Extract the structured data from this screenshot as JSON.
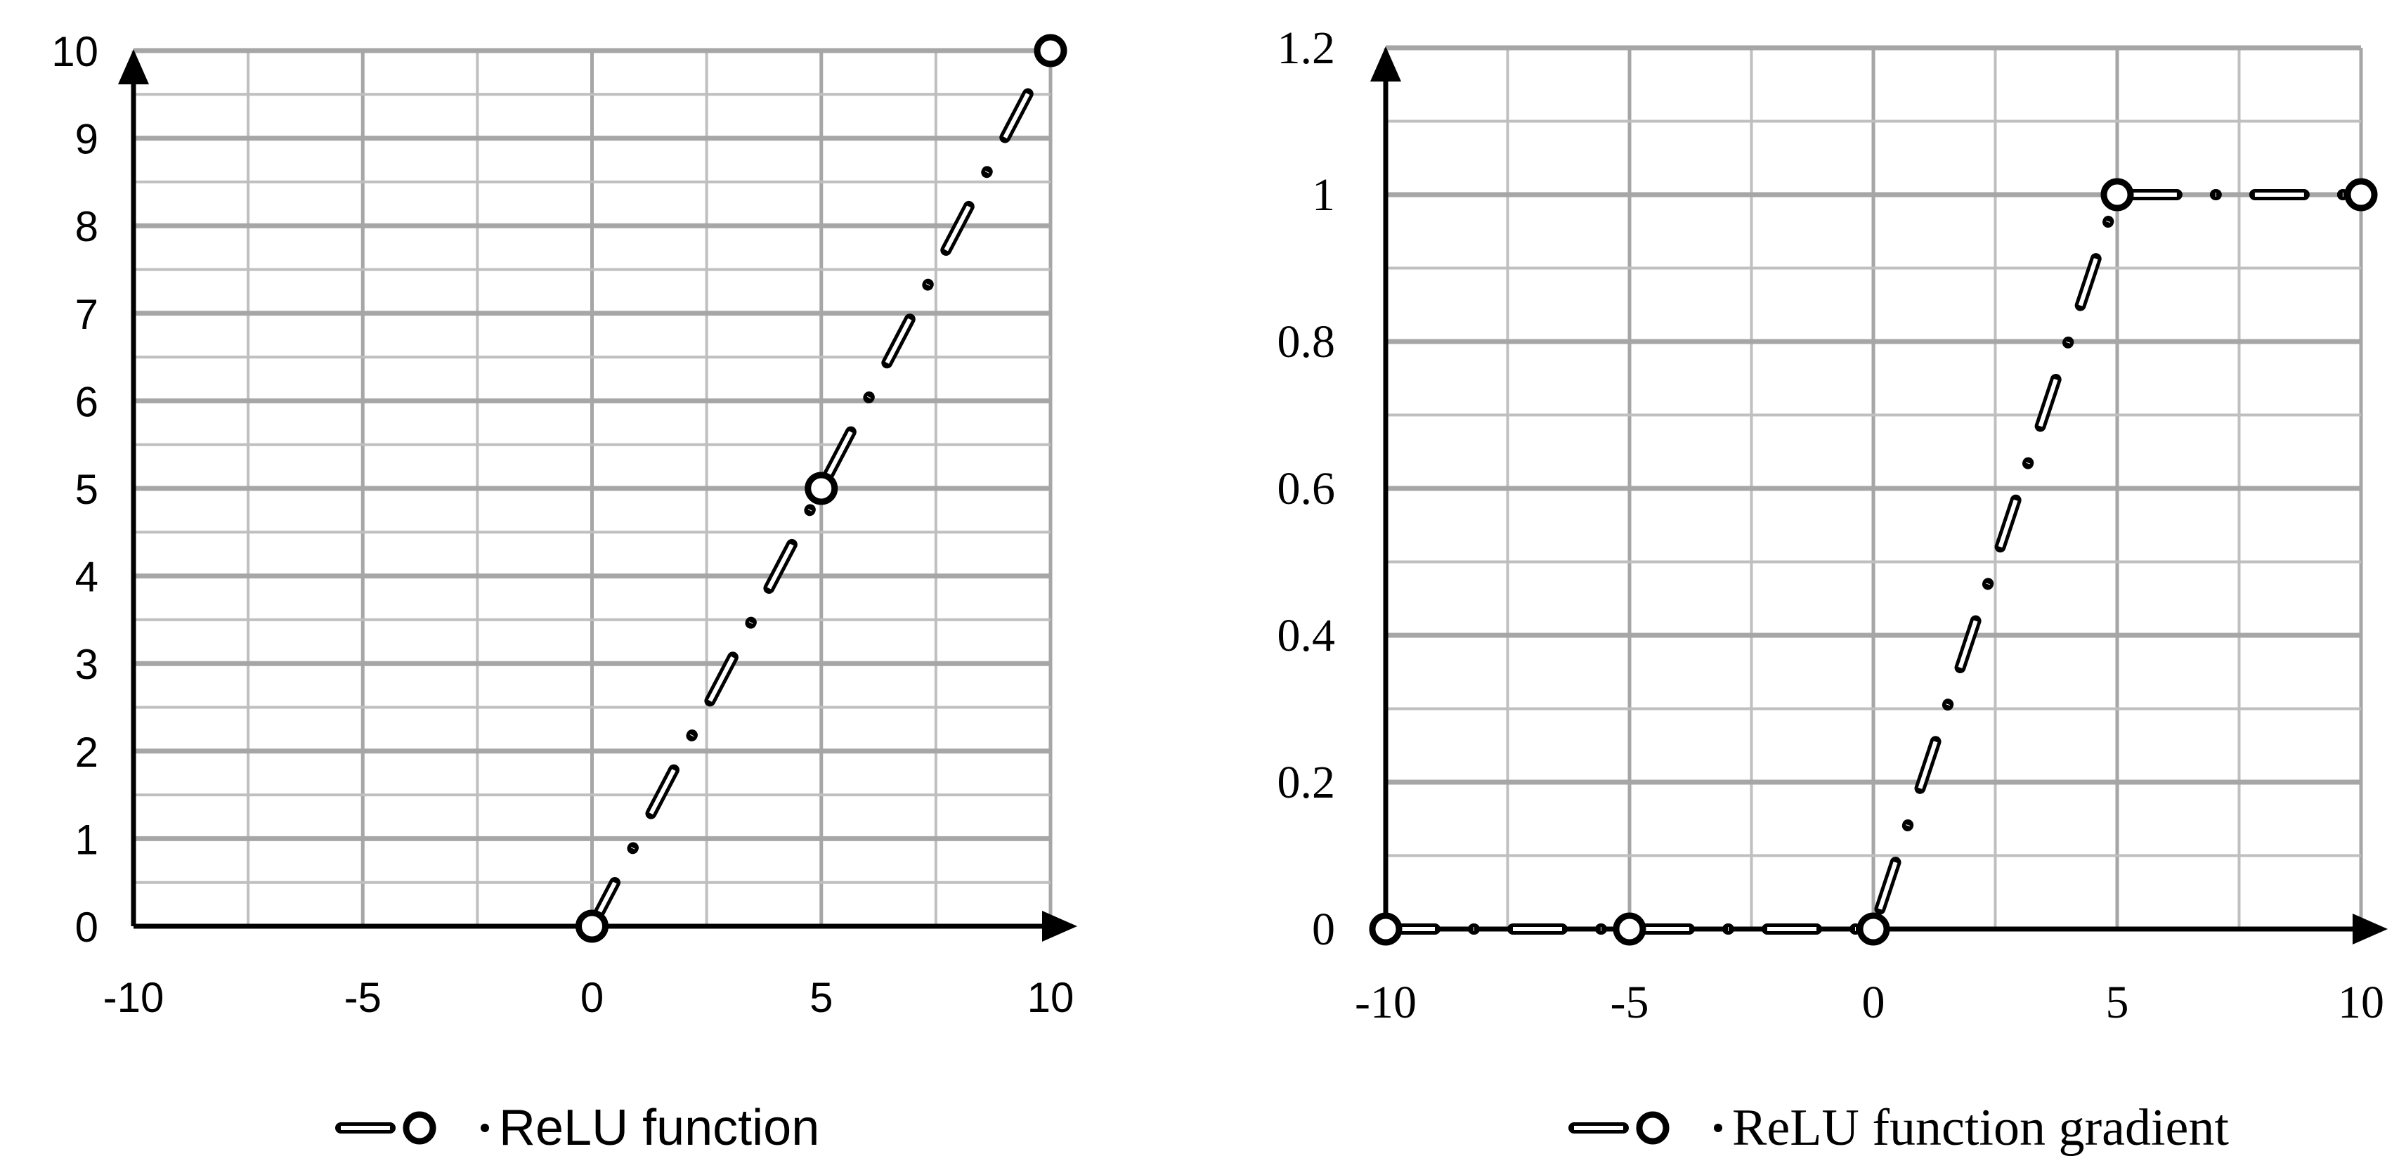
{
  "chart_data": [
    {
      "type": "line",
      "title": "",
      "xlabel": "",
      "ylabel": "",
      "xlim": [
        -10,
        10
      ],
      "ylim": [
        0,
        10
      ],
      "x_ticks": [
        "-10",
        "-5",
        "0",
        "5",
        "10"
      ],
      "y_ticks": [
        "0",
        "1",
        "2",
        "3",
        "4",
        "5",
        "6",
        "7",
        "8",
        "9",
        "10"
      ],
      "grid": true,
      "legend_position": "bottom",
      "series": [
        {
          "name": "ReLU function",
          "x": [
            0,
            5,
            10
          ],
          "y": [
            0,
            5,
            10
          ],
          "marker": "open-circle",
          "line_style": "dash-dot",
          "color": "#000000"
        }
      ]
    },
    {
      "type": "line",
      "title": "",
      "xlabel": "",
      "ylabel": "",
      "xlim": [
        -10,
        10
      ],
      "ylim": [
        0,
        1.2
      ],
      "x_ticks": [
        "-10",
        "-5",
        "0",
        "5",
        "10"
      ],
      "y_ticks": [
        "0",
        "0.2",
        "0.4",
        "0.6",
        "0.8",
        "1",
        "1.2"
      ],
      "grid": true,
      "legend_position": "bottom",
      "series": [
        {
          "name": "ReLU function gradient",
          "x": [
            -10,
            -5,
            0,
            5,
            10
          ],
          "y": [
            0,
            0,
            0,
            1,
            1
          ],
          "marker": "open-circle",
          "line_style": "dash-dot",
          "color": "#000000"
        }
      ]
    }
  ],
  "style": {
    "grid_major": "#a6a6a6",
    "grid_minor": "#bfbfbf",
    "axis": "#000000"
  }
}
